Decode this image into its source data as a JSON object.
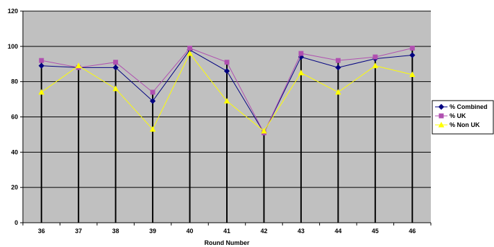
{
  "chart_data": {
    "type": "line",
    "title": "",
    "xlabel": "Round Number",
    "ylabel": "",
    "ylim": [
      0,
      120
    ],
    "yticks": [
      0,
      20,
      40,
      60,
      80,
      100,
      120
    ],
    "grid": true,
    "legend_position": "right",
    "plot_background": "#c0c0c0",
    "categories": [
      "36",
      "37",
      "38",
      "39",
      "40",
      "41",
      "42",
      "43",
      "44",
      "45",
      "46"
    ],
    "series": [
      {
        "name": "% Combined",
        "color": "#000080",
        "marker": "diamond",
        "values": [
          89,
          88,
          88,
          69,
          98,
          86,
          51,
          94,
          88,
          93,
          95
        ]
      },
      {
        "name": "% UK",
        "color": "#b050b0",
        "marker": "square",
        "values": [
          92,
          88,
          91,
          74,
          99,
          91,
          51,
          96,
          92,
          94,
          99
        ]
      },
      {
        "name": "% Non UK",
        "color": "#ffff00",
        "marker": "triangle",
        "values": [
          74,
          89,
          76,
          53,
          96,
          69,
          52,
          85,
          74,
          89,
          84
        ]
      }
    ]
  }
}
